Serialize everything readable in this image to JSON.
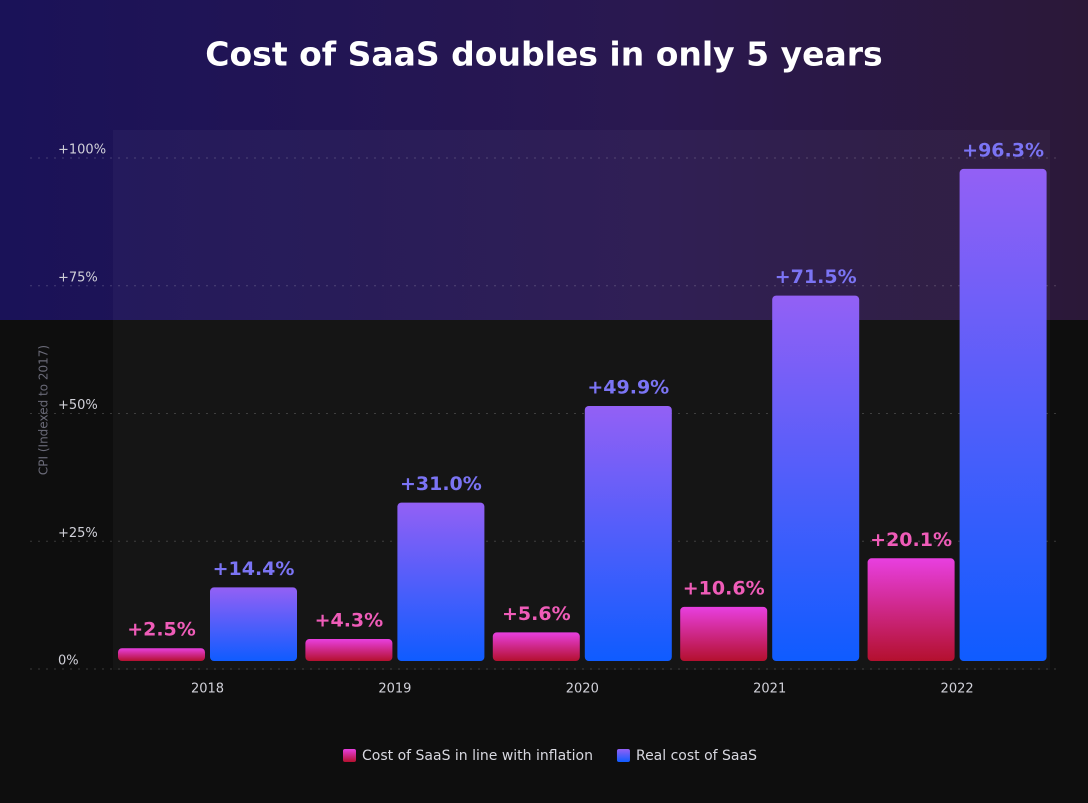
{
  "chart_data": {
    "type": "bar",
    "title": "Cost of SaaS doubles in only 5 years",
    "y_label": "CPI (Indexed to 2017)",
    "categories": [
      "2018",
      "2019",
      "2020",
      "2021",
      "2022"
    ],
    "series": [
      {
        "name": "Cost of SaaS in line with inflation",
        "color": "#ef5cb8",
        "values": [
          2.5,
          4.3,
          5.6,
          10.6,
          20.1
        ],
        "value_labels": [
          "+2.5%",
          "+4.3%",
          "+5.6%",
          "+10.6%",
          "+20.1%"
        ]
      },
      {
        "name": "Real cost of SaaS",
        "color": "#7b74f4",
        "values": [
          14.4,
          31.0,
          49.9,
          71.5,
          96.3
        ],
        "value_labels": [
          "+14.4%",
          "+31.0%",
          "+49.9%",
          "+71.5%",
          "+96.3%"
        ]
      }
    ],
    "ylim": [
      0,
      100
    ],
    "yticks": [
      {
        "value": 0,
        "label": "0%"
      },
      {
        "value": 25,
        "label": "+25%"
      },
      {
        "value": 50,
        "label": "+50%"
      },
      {
        "value": 75,
        "label": "+75%"
      },
      {
        "value": 100,
        "label": "+100%"
      }
    ],
    "grid": true,
    "legend": "bottom"
  }
}
